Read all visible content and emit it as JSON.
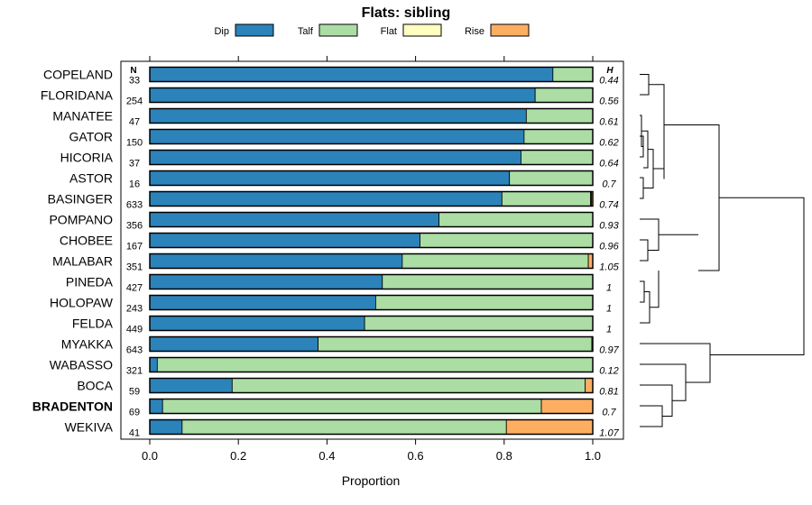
{
  "chart_data": {
    "type": "bar",
    "stacked": true,
    "orientation": "horizontal",
    "title": "Flats: sibling",
    "xlabel": "Proportion",
    "xlim": [
      0,
      1
    ],
    "xticks": [
      "0.0",
      "0.2",
      "0.4",
      "0.6",
      "0.8",
      "1.0"
    ],
    "column_headers": {
      "n": "N",
      "h": "H"
    },
    "legend_position": "top",
    "legend": [
      {
        "name": "Dip",
        "color": "#2B83BA"
      },
      {
        "name": "Talf",
        "color": "#ABDDA4"
      },
      {
        "name": "Flat",
        "color": "#FFFFBF"
      },
      {
        "name": "Rise",
        "color": "#FDAE61"
      }
    ],
    "rows": [
      {
        "name": "COPELAND",
        "n": "33",
        "h": "0.44",
        "bold": false,
        "values": [
          0.91,
          0.09,
          0.0,
          0.0
        ]
      },
      {
        "name": "FLORIDANA",
        "n": "254",
        "h": "0.56",
        "bold": false,
        "values": [
          0.87,
          0.13,
          0.0,
          0.0
        ]
      },
      {
        "name": "MANATEE",
        "n": "47",
        "h": "0.61",
        "bold": false,
        "values": [
          0.85,
          0.15,
          0.0,
          0.0
        ]
      },
      {
        "name": "GATOR",
        "n": "150",
        "h": "0.62",
        "bold": false,
        "values": [
          0.845,
          0.155,
          0.0,
          0.0
        ]
      },
      {
        "name": "HICORIA",
        "n": "37",
        "h": "0.64",
        "bold": false,
        "values": [
          0.838,
          0.162,
          0.0,
          0.0
        ]
      },
      {
        "name": "ASTOR",
        "n": "16",
        "h": "0.7",
        "bold": false,
        "values": [
          0.812,
          0.188,
          0.0,
          0.0
        ]
      },
      {
        "name": "BASINGER",
        "n": "633",
        "h": "0.74",
        "bold": false,
        "values": [
          0.795,
          0.2,
          0.002,
          0.003
        ]
      },
      {
        "name": "POMPANO",
        "n": "356",
        "h": "0.93",
        "bold": false,
        "values": [
          0.653,
          0.347,
          0.0,
          0.0
        ]
      },
      {
        "name": "CHOBEE",
        "n": "167",
        "h": "0.96",
        "bold": false,
        "values": [
          0.61,
          0.39,
          0.0,
          0.0
        ]
      },
      {
        "name": "MALABAR",
        "n": "351",
        "h": "1.05",
        "bold": false,
        "values": [
          0.57,
          0.42,
          0.0,
          0.01
        ]
      },
      {
        "name": "PINEDA",
        "n": "427",
        "h": "1",
        "bold": false,
        "values": [
          0.525,
          0.475,
          0.0,
          0.0
        ]
      },
      {
        "name": "HOLOPAW",
        "n": "243",
        "h": "1",
        "bold": false,
        "values": [
          0.51,
          0.49,
          0.0,
          0.0
        ]
      },
      {
        "name": "FELDA",
        "n": "449",
        "h": "1",
        "bold": false,
        "values": [
          0.485,
          0.515,
          0.0,
          0.0
        ]
      },
      {
        "name": "MYAKKA",
        "n": "643",
        "h": "0.97",
        "bold": false,
        "values": [
          0.38,
          0.618,
          0.0,
          0.002
        ]
      },
      {
        "name": "WABASSO",
        "n": "321",
        "h": "0.12",
        "bold": false,
        "values": [
          0.017,
          0.983,
          0.0,
          0.0
        ]
      },
      {
        "name": "BOCA",
        "n": "59",
        "h": "0.81",
        "bold": false,
        "values": [
          0.186,
          0.797,
          0.0,
          0.017
        ]
      },
      {
        "name": "BRADENTON",
        "n": "69",
        "h": "0.7",
        "bold": true,
        "values": [
          0.029,
          0.855,
          0.0,
          0.116
        ]
      },
      {
        "name": "WEKIVA",
        "n": "41",
        "h": "1.07",
        "bold": false,
        "values": [
          0.073,
          0.732,
          0.0,
          0.195
        ]
      }
    ]
  }
}
